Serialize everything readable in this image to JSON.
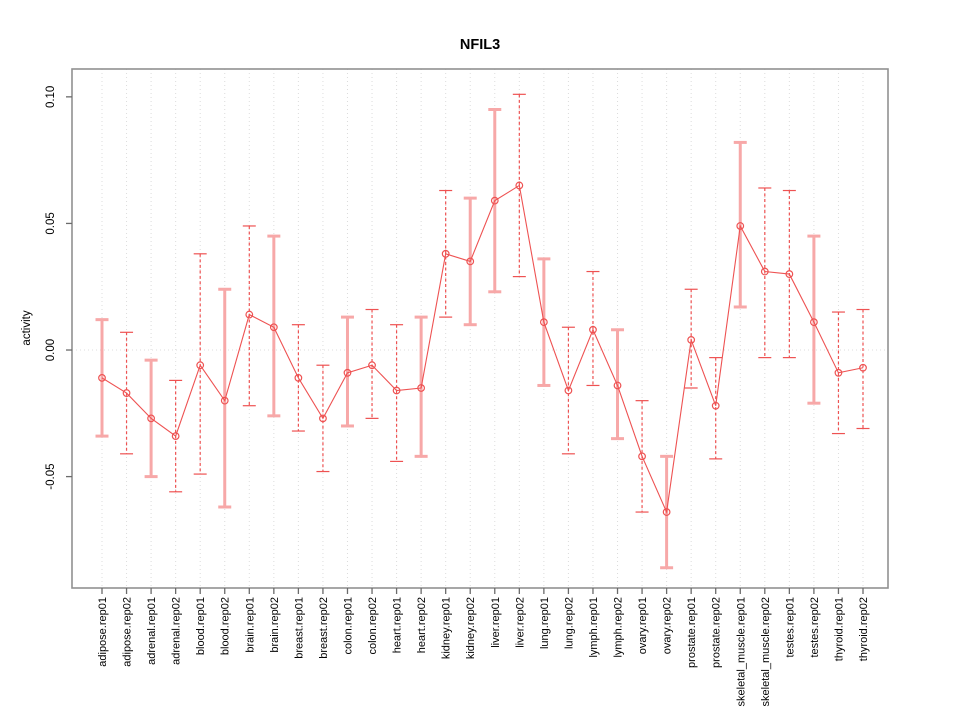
{
  "chart_data": {
    "type": "line",
    "title": "NFIL3",
    "xlabel": "",
    "ylabel": "activity",
    "ylim": [
      -0.094,
      0.111
    ],
    "yticks": [
      -0.05,
      0.0,
      0.05,
      0.1
    ],
    "ytick_labels": [
      "-0.05",
      "0.00",
      "0.05",
      "0.10"
    ],
    "legend_position": "none",
    "grid": {
      "vertical_dotted_per_category": true,
      "horizontal_dotted_zero_line": true
    },
    "series_color": "#ee5252",
    "solid_bar_color": "#f7a8a8",
    "grid_color": "#dcdcdc",
    "axis_color": "#919191",
    "tick_color": "#6b6b6b",
    "categories": [
      "adipose.rep01",
      "adipose.rep02",
      "adrenal.rep01",
      "adrenal.rep02",
      "blood.rep01",
      "blood.rep02",
      "brain.rep01",
      "brain.rep02",
      "breast.rep01",
      "breast.rep02",
      "colon.rep01",
      "colon.rep02",
      "heart.rep01",
      "heart.rep02",
      "kidney.rep01",
      "kidney.rep02",
      "liver.rep01",
      "liver.rep02",
      "lung.rep01",
      "lung.rep02",
      "lymph.rep01",
      "lymph.rep02",
      "ovary.rep01",
      "ovary.rep02",
      "prostate.rep01",
      "prostate.rep02",
      "skeletal_muscle.rep01",
      "skeletal_muscle.rep02",
      "testes.rep01",
      "testes.rep02",
      "thyroid.rep01",
      "thyroid.rep02"
    ],
    "series": [
      {
        "name": "activity",
        "values": [
          -0.011,
          -0.017,
          -0.027,
          -0.034,
          -0.006,
          -0.02,
          0.014,
          0.009,
          -0.011,
          -0.027,
          -0.009,
          -0.006,
          -0.016,
          -0.015,
          0.038,
          0.035,
          0.059,
          0.065,
          0.011,
          -0.016,
          0.008,
          -0.014,
          -0.042,
          -0.064,
          0.004,
          -0.022,
          0.049,
          0.031,
          0.03,
          0.011,
          -0.009,
          -0.007
        ]
      }
    ],
    "error_low": [
      -0.034,
      -0.041,
      -0.05,
      -0.056,
      -0.049,
      -0.062,
      -0.022,
      -0.026,
      -0.032,
      -0.048,
      -0.03,
      -0.027,
      -0.044,
      -0.042,
      0.013,
      0.01,
      0.023,
      0.029,
      -0.014,
      -0.041,
      -0.014,
      -0.035,
      -0.064,
      -0.086,
      -0.015,
      -0.043,
      0.017,
      -0.003,
      -0.003,
      -0.021,
      -0.033,
      -0.031
    ],
    "error_high": [
      0.012,
      0.007,
      -0.004,
      -0.012,
      0.038,
      0.024,
      0.049,
      0.045,
      0.01,
      -0.006,
      0.013,
      0.016,
      0.01,
      0.013,
      0.063,
      0.06,
      0.095,
      0.101,
      0.036,
      0.009,
      0.031,
      0.008,
      -0.02,
      -0.042,
      0.024,
      -0.003,
      0.082,
      0.064,
      0.063,
      0.045,
      0.015,
      0.016
    ],
    "error_bar_styles": [
      "solid",
      "dashed",
      "solid",
      "dashed",
      "dashed",
      "solid",
      "dashed",
      "solid",
      "dashed",
      "dashed",
      "solid",
      "dashed",
      "dashed",
      "solid",
      "dashed",
      "solid",
      "solid",
      "dashed",
      "solid",
      "dashed",
      "dashed",
      "solid",
      "dashed",
      "solid",
      "dashed",
      "dashed",
      "solid",
      "dashed",
      "dashed",
      "solid",
      "dashed",
      "dashed"
    ]
  }
}
